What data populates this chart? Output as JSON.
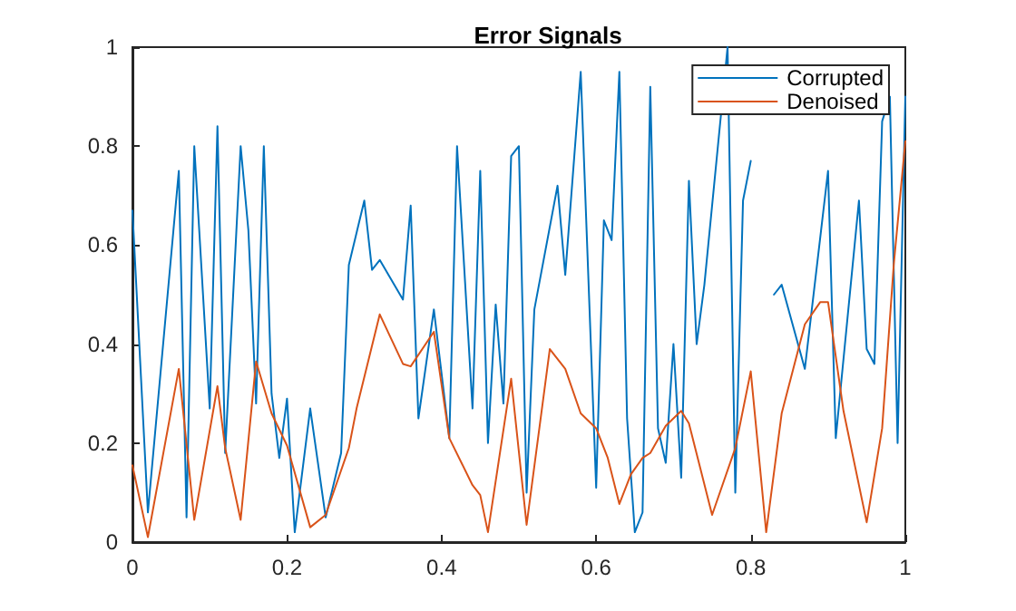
{
  "chart_data": {
    "type": "line",
    "title": "Error Signals",
    "xlim": [
      0,
      1
    ],
    "ylim": [
      0,
      1
    ],
    "xticks": [
      0,
      0.2,
      0.4,
      0.6,
      0.8,
      1
    ],
    "yticks": [
      0,
      0.2,
      0.4,
      0.6,
      0.8,
      1
    ],
    "grid": false,
    "legend": "top right",
    "marker": "none",
    "line_style": "solid",
    "series": [
      {
        "name": "Corrupted",
        "color": "#0072bd",
        "x": [
          0,
          0.02,
          0.06,
          0.07,
          0.08,
          0.1,
          0.11,
          0.12,
          0.14,
          0.15,
          0.16,
          0.17,
          0.18,
          0.19,
          0.2,
          0.21,
          0.23,
          0.25,
          0.27,
          0.28,
          0.3,
          0.31,
          0.32,
          0.35,
          0.36,
          0.37,
          0.39,
          0.41,
          0.42,
          0.44,
          0.45,
          0.46,
          0.47,
          0.48,
          0.49,
          0.5,
          0.51,
          0.52,
          0.55,
          0.56,
          0.58,
          0.6,
          0.61,
          0.62,
          0.63,
          0.64,
          0.65,
          0.66,
          0.67,
          0.68,
          0.69,
          0.7,
          0.71,
          0.72,
          0.73,
          0.74,
          0.77,
          0.78,
          0.79,
          0.8,
          0.81,
          0.83,
          0.84,
          0.87,
          0.9,
          0.91,
          0.94,
          0.95,
          0.96,
          0.97,
          0.98,
          0.99,
          1
        ],
        "values": [
          0.67,
          0.06,
          0.75,
          0.05,
          0.8,
          0.27,
          0.84,
          0.18,
          0.8,
          0.63,
          0.28,
          0.8,
          0.3,
          0.17,
          0.29,
          0.02,
          0.27,
          0.05,
          0.18,
          0.56,
          0.69,
          0.55,
          0.57,
          0.49,
          0.68,
          0.25,
          0.47,
          0.21,
          0.8,
          0.27,
          0.75,
          0.2,
          0.48,
          0.28,
          0.78,
          0.8,
          0.1,
          0.47,
          0.72,
          0.54,
          0.95,
          0.11,
          0.65,
          0.61,
          0.95,
          0.25,
          0.02,
          0.06,
          0.92,
          0.23,
          0.16,
          0.4,
          0.13,
          0.73,
          0.4,
          0.52,
          1,
          0.1,
          0.69,
          0.77,
          null,
          0.5,
          0.52,
          0.35,
          0.75,
          0.21,
          0.69,
          0.39,
          0.36,
          0.85,
          0.9,
          0.2,
          0.9
        ]
      },
      {
        "name": "Denoised",
        "color": "#d95319",
        "x": [
          0,
          0.02,
          0.06,
          0.08,
          0.11,
          0.12,
          0.14,
          0.16,
          0.18,
          0.2,
          0.23,
          0.25,
          0.28,
          0.29,
          0.32,
          0.35,
          0.36,
          0.39,
          0.41,
          0.44,
          0.45,
          0.46,
          0.49,
          0.51,
          0.54,
          0.56,
          0.58,
          0.6,
          0.615,
          0.63,
          0.645,
          0.66,
          0.67,
          0.69,
          0.71,
          0.72,
          0.75,
          0.78,
          0.8,
          0.82,
          0.84,
          0.87,
          0.89,
          0.9,
          0.92,
          0.95,
          0.97,
          0.985,
          1
        ],
        "values": [
          0.155,
          0.01,
          0.35,
          0.045,
          0.315,
          0.19,
          0.045,
          0.365,
          0.26,
          0.195,
          0.03,
          0.055,
          0.19,
          0.27,
          0.46,
          0.36,
          0.355,
          0.425,
          0.21,
          0.115,
          0.095,
          0.02,
          0.33,
          0.035,
          0.39,
          0.35,
          0.26,
          0.23,
          0.17,
          0.077,
          0.137,
          0.17,
          0.18,
          0.235,
          0.265,
          0.24,
          0.055,
          0.19,
          0.345,
          0.02,
          0.26,
          0.44,
          0.485,
          0.485,
          0.265,
          0.04,
          0.23,
          0.56,
          0.81
        ]
      }
    ]
  }
}
